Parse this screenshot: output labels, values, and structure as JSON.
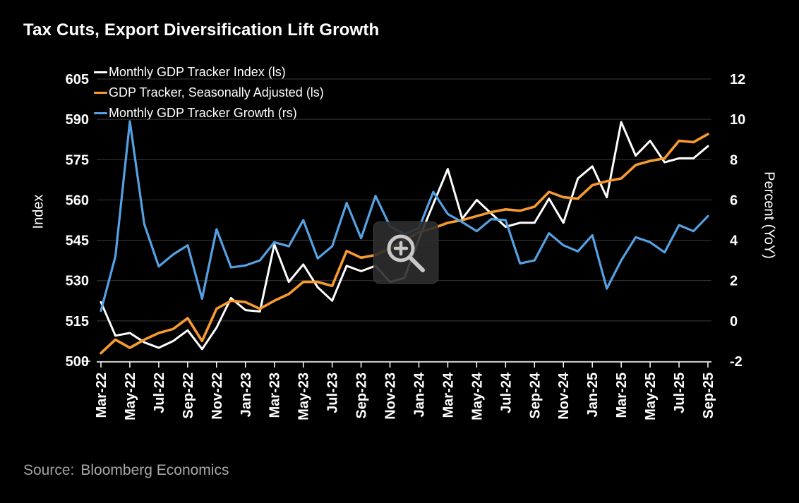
{
  "title": "Tax Cuts, Export Diversification Lift Growth",
  "source": {
    "prefix": "Source:",
    "value": "Bloomberg Economics"
  },
  "legend": [
    {
      "label": "Monthly GDP Tracker Index (ls)"
    },
    {
      "label": "GDP Tracker, Seasonally Adjusted (ls)"
    },
    {
      "label": "Monthly GDP Tracker Growth (rs)"
    }
  ],
  "colors": {
    "background": "#000000",
    "gridline": "#3a3a3a",
    "axis_line": "#ffffff",
    "tick_text": "#ffffff",
    "white_series": "#ffffff",
    "orange_series": "#f79b30",
    "blue_series": "#55a1e3",
    "overlay_fill": "#2e2e2e",
    "overlay_icon": "#c8c8c8",
    "source_text": "#a2a2a2"
  },
  "zoom_overlay": {
    "icon": "magnifier-plus-icon",
    "present": true
  },
  "chart_data": {
    "type": "line",
    "title": "Tax Cuts, Export Diversification Lift Growth",
    "x": [
      "Mar-22",
      "Apr-22",
      "May-22",
      "Jun-22",
      "Jul-22",
      "Aug-22",
      "Sep-22",
      "Oct-22",
      "Nov-22",
      "Dec-22",
      "Jan-23",
      "Feb-23",
      "Mar-23",
      "Apr-23",
      "May-23",
      "Jun-23",
      "Jul-23",
      "Aug-23",
      "Sep-23",
      "Oct-23",
      "Nov-23",
      "Dec-23",
      "Jan-24",
      "Feb-24",
      "Mar-24",
      "Apr-24",
      "May-24",
      "Jun-24",
      "Jul-24",
      "Aug-24",
      "Sep-24",
      "Oct-24",
      "Nov-24",
      "Dec-24",
      "Jan-25",
      "Feb-25",
      "Mar-25",
      "Apr-25",
      "May-25",
      "Jun-25",
      "Jul-25",
      "Aug-25",
      "Sep-25"
    ],
    "x_tick_labels": [
      "Mar-22",
      "May-22",
      "Jul-22",
      "Sep-22",
      "Nov-22",
      "Jan-23",
      "Mar-23",
      "May-23",
      "Jul-23",
      "Sep-23",
      "Nov-23",
      "Jan-24",
      "Mar-24",
      "May-24",
      "Jul-24",
      "Sep-24",
      "Nov-24",
      "Jan-25",
      "Mar-25",
      "May-25",
      "Jul-25",
      "Sep-25"
    ],
    "left_axis": {
      "label": "Index",
      "ticks": [
        605,
        590,
        575,
        560,
        545,
        530,
        515,
        500
      ],
      "range": [
        500,
        605
      ]
    },
    "right_axis": {
      "label": "Percent (YoY)",
      "ticks": [
        12,
        10,
        8,
        6,
        4,
        2,
        0,
        -2
      ],
      "range": [
        -2,
        12
      ]
    },
    "grid": true,
    "legend_position": "top-left",
    "series": [
      {
        "name": "Monthly GDP Tracker Index (ls)",
        "axis": "left",
        "color": "#ffffff",
        "width": 3,
        "values": [
          522,
          509.5,
          510.5,
          507,
          505,
          507.5,
          511.5,
          504.5,
          512.5,
          523.5,
          519,
          518.5,
          543.5,
          529.5,
          536,
          527.5,
          522.5,
          535.5,
          533.5,
          535.5,
          529.5,
          531,
          545.5,
          558.5,
          571.5,
          553,
          560,
          555,
          550,
          551.5,
          551.5,
          560.5,
          551.5,
          568,
          572.5,
          561,
          589,
          576.5,
          582,
          574,
          575.5,
          575.5,
          580
        ]
      },
      {
        "name": "GDP Tracker, Seasonally Adjusted (ls)",
        "axis": "left",
        "color": "#f79b30",
        "width": 3.6,
        "values": [
          503,
          508,
          505,
          508,
          510.5,
          512,
          516,
          507.5,
          519.5,
          522.5,
          522,
          519.5,
          522.5,
          525,
          529.5,
          529.5,
          528,
          541,
          538.5,
          539.5,
          542,
          545,
          548,
          549.5,
          551.5,
          552.5,
          554,
          555.5,
          556.5,
          556,
          557.5,
          563,
          561,
          560.5,
          565.5,
          567,
          568,
          573,
          574.5,
          575.5,
          582,
          581.5,
          584.5
        ]
      },
      {
        "name": "Monthly GDP Tracker Growth (rs)",
        "axis": "right",
        "color": "#55a1e3",
        "width": 3.2,
        "values": [
          0.5,
          3.2,
          9.9,
          4.8,
          2.7,
          3.3,
          3.75,
          1.1,
          4.55,
          2.65,
          2.75,
          3.0,
          3.9,
          3.7,
          5.0,
          3.1,
          3.7,
          5.85,
          4.1,
          6.2,
          4.7,
          4.3,
          4.6,
          6.4,
          5.3,
          4.9,
          4.45,
          5.05,
          5.0,
          2.85,
          3.0,
          4.35,
          3.75,
          3.45,
          4.25,
          1.6,
          3.0,
          4.15,
          3.9,
          3.4,
          4.75,
          4.45,
          5.2
        ]
      }
    ]
  }
}
